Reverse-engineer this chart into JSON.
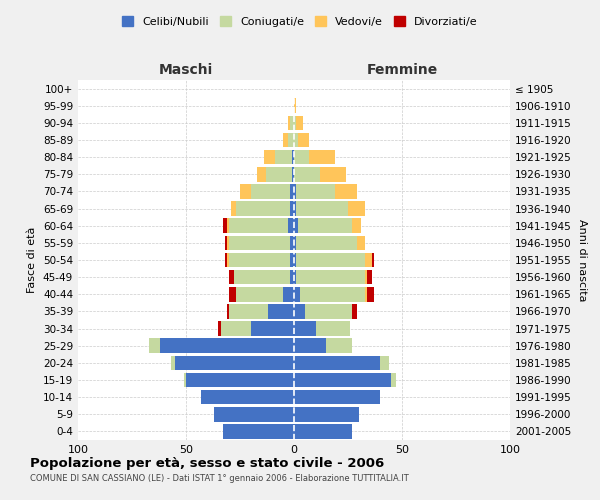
{
  "age_groups": [
    "0-4",
    "5-9",
    "10-14",
    "15-19",
    "20-24",
    "25-29",
    "30-34",
    "35-39",
    "40-44",
    "45-49",
    "50-54",
    "55-59",
    "60-64",
    "65-69",
    "70-74",
    "75-79",
    "80-84",
    "85-89",
    "90-94",
    "95-99",
    "100+"
  ],
  "birth_years": [
    "2001-2005",
    "1996-2000",
    "1991-1995",
    "1986-1990",
    "1981-1985",
    "1976-1980",
    "1971-1975",
    "1966-1970",
    "1961-1965",
    "1956-1960",
    "1951-1955",
    "1946-1950",
    "1941-1945",
    "1936-1940",
    "1931-1935",
    "1926-1930",
    "1921-1925",
    "1916-1920",
    "1911-1915",
    "1906-1910",
    "≤ 1905"
  ],
  "male": {
    "celibe": [
      33,
      37,
      43,
      50,
      55,
      62,
      20,
      12,
      5,
      2,
      2,
      2,
      3,
      2,
      2,
      1,
      1,
      0,
      0,
      0,
      0
    ],
    "coniugato": [
      0,
      0,
      0,
      1,
      2,
      5,
      14,
      18,
      22,
      26,
      28,
      28,
      27,
      25,
      18,
      12,
      8,
      3,
      2,
      0,
      0
    ],
    "vedovo": [
      0,
      0,
      0,
      0,
      0,
      0,
      0,
      0,
      0,
      0,
      1,
      1,
      1,
      2,
      5,
      4,
      5,
      2,
      1,
      0,
      0
    ],
    "divorziato": [
      0,
      0,
      0,
      0,
      0,
      0,
      1,
      1,
      3,
      2,
      1,
      1,
      2,
      0,
      0,
      0,
      0,
      0,
      0,
      0,
      0
    ]
  },
  "female": {
    "nubile": [
      27,
      30,
      40,
      45,
      40,
      15,
      10,
      5,
      3,
      1,
      1,
      1,
      2,
      1,
      1,
      0,
      0,
      0,
      0,
      0,
      0
    ],
    "coniugata": [
      0,
      0,
      0,
      2,
      4,
      12,
      16,
      22,
      30,
      32,
      32,
      28,
      25,
      24,
      18,
      12,
      7,
      2,
      1,
      0,
      0
    ],
    "vedova": [
      0,
      0,
      0,
      0,
      0,
      0,
      0,
      0,
      1,
      1,
      3,
      4,
      4,
      8,
      10,
      12,
      12,
      5,
      3,
      1,
      0
    ],
    "divorziata": [
      0,
      0,
      0,
      0,
      0,
      0,
      0,
      2,
      3,
      2,
      1,
      0,
      0,
      0,
      0,
      0,
      0,
      0,
      0,
      0,
      0
    ]
  },
  "colors": {
    "celibe": "#4472c4",
    "coniugato": "#c5d9a0",
    "vedovo": "#ffc55a",
    "divorziato": "#c00000"
  },
  "xlim": 100,
  "title": "Popolazione per età, sesso e stato civile - 2006",
  "subtitle": "COMUNE DI SAN CASSIANO (LE) - Dati ISTAT 1° gennaio 2006 - Elaborazione TUTTITALIA.IT",
  "xlabel_left": "Maschi",
  "xlabel_right": "Femmine",
  "ylabel_left": "Fasce di età",
  "ylabel_right": "Anni di nascita",
  "bg_color": "#f0f0f0",
  "plot_bg": "#ffffff",
  "legend_labels": [
    "Celibi/Nubili",
    "Coniugati/e",
    "Vedovi/e",
    "Divorziati/e"
  ]
}
